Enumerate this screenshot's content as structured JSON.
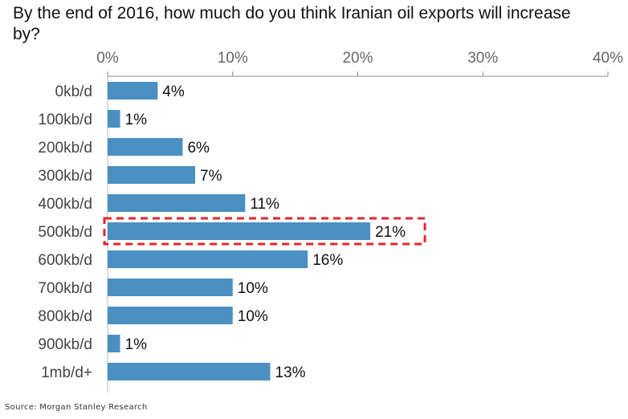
{
  "chart_data": {
    "type": "bar",
    "orientation": "horizontal",
    "title": "By the end of 2016, how much do you think Iranian oil exports will increase by?",
    "categories": [
      "0kb/d",
      "100kb/d",
      "200kb/d",
      "300kb/d",
      "400kb/d",
      "500kb/d",
      "600kb/d",
      "700kb/d",
      "800kb/d",
      "900kb/d",
      "1mb/d+"
    ],
    "values": [
      4,
      1,
      6,
      7,
      11,
      21,
      16,
      10,
      10,
      1,
      13
    ],
    "value_labels": [
      "4%",
      "1%",
      "6%",
      "7%",
      "11%",
      "21%",
      "16%",
      "10%",
      "10%",
      "1%",
      "13%"
    ],
    "xlim": [
      0,
      40
    ],
    "xticks": [
      0,
      10,
      20,
      30,
      40
    ],
    "xtick_labels": [
      "0%",
      "10%",
      "20%",
      "30%",
      "40%"
    ],
    "axis_position": "top",
    "grid": false,
    "highlight_category": "500kb/d",
    "colors": {
      "bar": "#4a90c2",
      "highlight_border": "#e3272c",
      "axis": "#888888",
      "text": "#111111"
    }
  },
  "source": "Source: Morgan Stanley Research"
}
